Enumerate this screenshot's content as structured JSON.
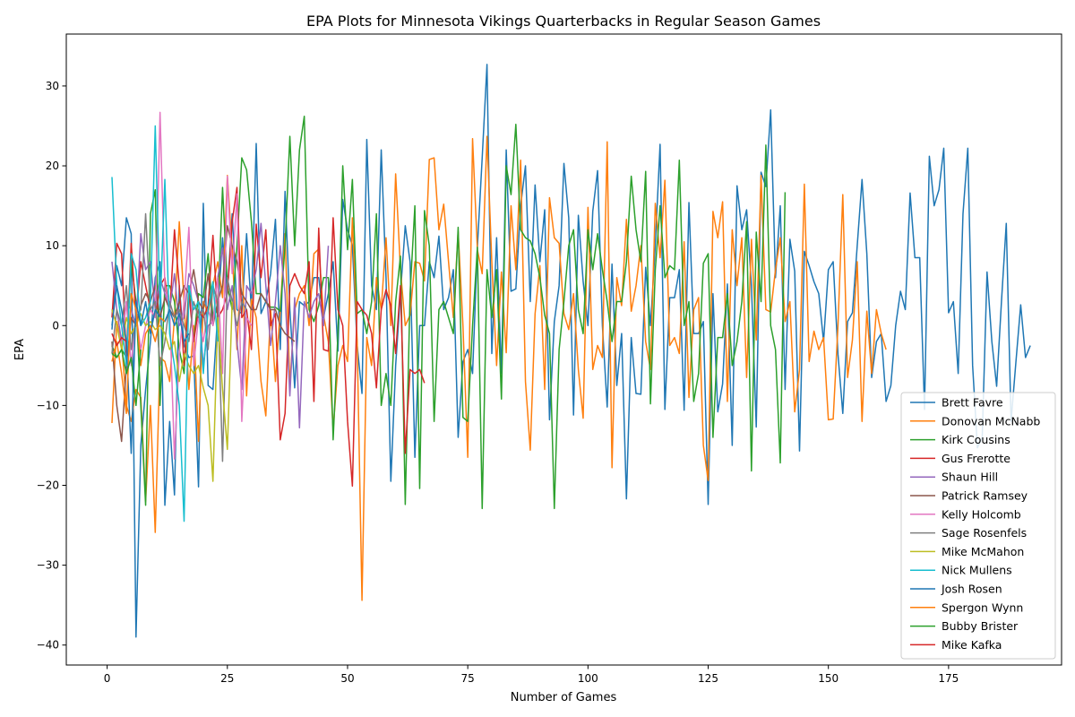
{
  "chart_data": {
    "type": "line",
    "title": "EPA Plots for Minnesota Vikings Quarterbacks in Regular Season Games",
    "xlabel": "Number of Games",
    "ylabel": "EPA",
    "xlim": [
      -8.5,
      198.5
    ],
    "ylim": [
      -42.5,
      36.5
    ],
    "xticks": [
      0,
      25,
      50,
      75,
      100,
      125,
      150,
      175
    ],
    "yticks": [
      -40,
      -30,
      -20,
      -10,
      0,
      10,
      20,
      30
    ],
    "xtick_labels": [
      "0",
      "25",
      "50",
      "75",
      "100",
      "125",
      "150",
      "175"
    ],
    "ytick_labels": [
      "−40",
      "−30",
      "−20",
      "−10",
      "0",
      "10",
      "20",
      "30"
    ],
    "grid": false,
    "legend_position": "lower-right",
    "series": [
      {
        "name": "Brett Favre",
        "color": "#1f77b4",
        "x_start": 1,
        "values": [
          -0.5,
          7.5,
          5.0,
          13.5,
          11.5,
          -39.0,
          -15.0,
          -8.0,
          -2.0,
          6.0,
          8.0,
          -22.5,
          -12.0,
          -21.2,
          5.0,
          -2.5,
          -4.0,
          -3.8,
          -20.2,
          15.3,
          -7.5,
          -8.0,
          1.6,
          11.0,
          4.0,
          14.0,
          2.0,
          1.5,
          11.5,
          2.0,
          22.8,
          1.5,
          3.0,
          6.5,
          13.3,
          -3.0,
          16.8,
          2.0,
          -7.8,
          3.0,
          2.5,
          3.0,
          6.0,
          6.0,
          1.0,
          4.0,
          8.0,
          -3.2,
          15.8,
          12.0,
          10.0,
          -2.5,
          -8.5,
          23.3,
          5.0,
          2.0,
          22.0,
          6.0,
          -19.5,
          -5.0,
          4.0,
          12.5,
          8.0,
          -16.5,
          0.0,
          0.0,
          8.0,
          6.0,
          11.2,
          2.0,
          3.5,
          7.0,
          -14.0,
          -4.5,
          -3.0,
          -6.0,
          9.8,
          21.0,
          32.7,
          -3.5,
          11.0,
          -6.0,
          22.0,
          4.3,
          4.6,
          15.0,
          20.0,
          3.0,
          17.6,
          8.0,
          14.5,
          -11.8,
          0.5,
          5.0,
          20.3,
          13.5,
          -11.2,
          13.8,
          5.5,
          0.0,
          14.3,
          19.4,
          0.0,
          -10.2,
          7.7,
          -7.5,
          -1.0,
          -21.7,
          -1.5,
          -8.5,
          -8.6,
          7.3,
          0.0,
          10.0,
          22.7,
          -10.5,
          3.5,
          3.5,
          7.0,
          -10.6,
          15.4,
          -1.0,
          -1.0,
          0.5,
          -22.4,
          4.0,
          -10.8,
          -7.3,
          5.2,
          -15.0,
          17.5,
          12.0,
          14.5,
          5.0,
          -12.7,
          19.2,
          17.4,
          27.0,
          6.0,
          15.0,
          -8.0,
          10.8,
          6.8,
          -15.7,
          9.3,
          7.5,
          5.5,
          4.0,
          -2.0,
          7.0,
          8.0,
          -3.6,
          -11.0,
          0.5,
          1.6,
          10.0,
          18.3,
          9.0,
          -6.5,
          -2.0,
          -1.0,
          -9.5,
          -7.5,
          0.0,
          4.3,
          2.0,
          16.6,
          8.5,
          8.5,
          -10.5,
          21.2,
          15.0,
          17.0,
          22.2,
          1.6,
          3.0,
          -6.0,
          14.0,
          22.2,
          -5.0,
          -15.3,
          -14.0,
          6.7,
          -2.0,
          -7.6,
          3.0,
          12.8,
          -12.0,
          -4.6,
          2.6,
          -4.0,
          -2.5
        ]
      },
      {
        "name": "Donovan McNabb",
        "color": "#ff7f0e",
        "x_start": 1,
        "values": [
          -12.2,
          0.5,
          -2.0,
          -10.0,
          -12.0,
          -8.0,
          -9.0,
          -22.0,
          -10.0,
          -25.9,
          -4.0,
          -4.5,
          -7.0,
          1.0,
          13.0,
          3.0,
          -8.0,
          0.0,
          -14.5,
          3.0,
          1.5,
          5.0,
          8.0,
          3.5,
          18.8,
          9.5,
          -3.0,
          10.0,
          -8.8,
          3.3,
          1.0,
          -7.0,
          -11.3,
          2.0,
          -7.0,
          2.0,
          11.5,
          -7.5,
          2.0,
          4.0,
          5.0,
          0.0,
          9.0,
          9.6,
          1.3,
          -2.0,
          -13.0,
          -5.0,
          -2.5,
          -4.5,
          13.5,
          -2.0,
          -34.4,
          -1.5,
          -5.0,
          6.0,
          2.0,
          11.0,
          0.0,
          19.0,
          7.0,
          0.0,
          1.3,
          8.0,
          7.8,
          5.6,
          20.8,
          21.0,
          12.0,
          15.2,
          8.0,
          1.0,
          11.8,
          0.0,
          -16.5,
          23.4,
          9.5,
          6.5,
          23.7,
          8.0,
          -5.0,
          6.7,
          -3.4,
          15.0,
          7.0,
          20.7,
          -7.0,
          -15.6,
          1.5,
          7.5,
          -8.0,
          16.0,
          11.0,
          10.3,
          1.5,
          -0.5,
          4.0,
          -5.5,
          -11.6,
          14.8,
          -5.5,
          -2.5,
          -4.0,
          23.0,
          -17.8,
          6.0,
          2.5,
          13.3,
          1.8,
          5.0,
          10.0,
          -2.0,
          -5.5,
          15.3,
          8.5,
          18.2,
          -2.5,
          -1.5,
          -3.5,
          10.5,
          -9.0,
          2.0,
          3.5,
          -15.0,
          -19.4,
          14.3,
          11.0,
          15.5,
          -9.5,
          12.0,
          5.0,
          11.0,
          -6.5,
          10.8,
          -1.8,
          18.8,
          2.0,
          1.7,
          7.0,
          11.0,
          0.5,
          3.0,
          -10.8,
          -5.5,
          17.7,
          -4.5,
          -0.7,
          -3.0,
          -1.5,
          -11.8,
          -11.7,
          0.0,
          16.4,
          -6.5,
          -1.8,
          8.0,
          -12.0,
          1.8,
          -6.0,
          2.0,
          -1.0,
          -3.0
        ]
      },
      {
        "name": "Kirk Cousins",
        "color": "#2ca02c",
        "x_start": 1,
        "values": [
          -2.5,
          -4.0,
          -3.0,
          -4.0,
          8.0,
          3.0,
          -10.0,
          -22.5,
          14.0,
          17.0,
          -10.0,
          5.0,
          5.0,
          3.0,
          -3.0,
          -6.0,
          5.0,
          -2.0,
          4.0,
          3.5,
          9.0,
          1.0,
          2.0,
          17.3,
          5.0,
          2.0,
          10.0,
          21.0,
          19.5,
          13.0,
          4.0,
          4.0,
          3.0,
          2.3,
          2.3,
          1.8,
          10.0,
          23.7,
          10.0,
          22.0,
          26.2,
          2.0,
          0.5,
          2.5,
          6.0,
          6.0,
          -14.3,
          -1.0,
          20.0,
          9.5,
          18.3,
          1.5,
          2.0,
          -1.0,
          3.0,
          14.0,
          -10.0,
          -6.0,
          -10.0,
          3.0,
          8.7,
          -22.4,
          4.0,
          15.0,
          -20.4,
          14.4,
          10.0,
          -12.0,
          2.0,
          3.0,
          1.0,
          -1.0,
          12.3,
          -11.5,
          -12.0,
          0.0,
          9.8,
          -22.9,
          7.0,
          1.0,
          7.0,
          -9.2,
          20.0,
          16.4,
          25.2,
          12.0,
          11.0,
          10.6,
          9.0,
          6.0,
          1.3,
          -1.0,
          -22.9,
          -3.0,
          3.0,
          10.0,
          12.0,
          2.0,
          -1.0,
          12.0,
          7.0,
          11.5,
          7.0,
          3.0,
          -2.0,
          3.0,
          3.0,
          8.0,
          18.7,
          12.0,
          8.0,
          19.3,
          -9.8,
          7.0,
          15.0,
          6.0,
          7.5,
          7.0,
          20.7,
          0.0,
          3.0,
          -9.5,
          -6.0,
          7.8,
          9.0,
          -14.0,
          -1.5,
          -1.5,
          4.0,
          -5.0,
          -2.0,
          3.0,
          13.0,
          -18.2,
          11.7,
          3.0,
          22.6,
          0.0,
          -3.0,
          -17.2,
          16.7
        ]
      },
      {
        "name": "Gus Frerotte",
        "color": "#d62728",
        "x_start": 1,
        "values": [
          1.0,
          10.3,
          9.0,
          -4.0,
          10.3,
          1.0,
          8.0,
          5.0,
          2.0,
          1.0,
          5.0,
          6.0,
          1.3,
          12.0,
          5.0,
          -5.0,
          4.0,
          -2.0,
          2.0,
          1.0,
          2.5,
          11.3,
          1.0,
          2.0,
          4.0,
          13.0,
          17.3,
          1.0,
          2.0,
          -3.0,
          12.7,
          6.0,
          12.0,
          0.0,
          1.5,
          -14.3,
          -11.0,
          5.0,
          6.5,
          5.0,
          4.0,
          8.0,
          -9.5,
          12.2,
          -3.0,
          -3.2,
          13.5,
          2.0,
          0.0,
          -12.0,
          -20.1,
          3.0,
          2.0,
          1.3,
          -1.0,
          -7.8,
          2.0,
          4.5,
          2.5,
          -3.5,
          5.0,
          -16.0,
          -5.5,
          -6.0,
          -5.5,
          -7.2
        ]
      },
      {
        "name": "Shaun Hill",
        "color": "#9467bd",
        "x_start": 1,
        "values": [
          8.0,
          2.0,
          -2.0,
          3.0,
          2.0,
          0.0,
          11.5,
          7.0,
          8.0,
          2.0,
          6.0,
          4.0,
          2.0,
          6.5,
          0.0,
          1.0,
          6.5,
          5.0,
          3.0,
          -5.0,
          0.0,
          0.5,
          6.0,
          9.7,
          2.0,
          5.0,
          -2.0,
          -8.0,
          5.0,
          4.0,
          7.0,
          12.8,
          5.0,
          -2.5,
          3.0,
          10.0,
          4.0,
          -8.8,
          3.5,
          -12.8,
          3.0,
          1.0,
          3.0,
          4.0,
          0.0,
          10.0
        ]
      },
      {
        "name": "Patrick Ramsey",
        "color": "#8c564b",
        "x_start": 1,
        "values": [
          -2.0,
          -10.0,
          -14.5,
          -5.0,
          1.0,
          0.0,
          2.5,
          4.0,
          3.0,
          5.0,
          1.0,
          3.5,
          2.0,
          1.0,
          3.0,
          5.0,
          4.0,
          7.0,
          3.0,
          2.0,
          6.5,
          0.0,
          3.0,
          5.0,
          12.5,
          10.0,
          8.0,
          4.0,
          3.0,
          2.0,
          2.0,
          4.0,
          3.0,
          2.0,
          2.0,
          0.0,
          -1.0,
          -1.5,
          -2.0
        ]
      },
      {
        "name": "Kelly Holcomb",
        "color": "#e377c2",
        "x_start": 1,
        "values": [
          2.0,
          0.0,
          -2.5,
          3.0,
          -5.0,
          1.5,
          -3.0,
          0.0,
          2.0,
          1.0,
          26.7,
          5.0,
          2.0,
          -16.7,
          -3.5,
          3.0,
          12.3,
          -5.0,
          1.0,
          -2.0,
          2.0,
          0.0,
          6.0,
          -6.0,
          18.7,
          6.5,
          16.5,
          -12.0,
          1.0,
          0.0
        ]
      },
      {
        "name": "Sage Rosenfels",
        "color": "#7f7f7f",
        "x_start": 1,
        "values": [
          -3.5,
          2.0,
          0.0,
          5.0,
          -3.0,
          1.0,
          2.0,
          14.0,
          2.0,
          3.0,
          -5.0,
          -2.0,
          3.0,
          1.0,
          2.0,
          0.0,
          -2.0,
          3.0,
          1.0,
          2.0,
          -3.0,
          5.0,
          3.0,
          -17.0,
          6.0,
          3.0,
          0.0,
          3.0,
          2.0
        ]
      },
      {
        "name": "Mike McMahon",
        "color": "#bcbd22",
        "x_start": 1,
        "values": [
          2.0,
          0.0,
          -3.0,
          1.0,
          -1.0,
          0.0,
          1.5,
          0.0,
          0.5,
          -0.5,
          0.0,
          -1.0,
          -3.0,
          -2.0,
          -7.0,
          -3.5,
          -5.0,
          -6.0,
          -5.0,
          -7.8,
          -10.0,
          -19.5,
          1.0,
          -8.0,
          -15.5,
          3.0
        ]
      },
      {
        "name": "Nick Mullens",
        "color": "#17becf",
        "x_start": 1,
        "values": [
          18.6,
          5.0,
          0.0,
          -5.0,
          9.0,
          7.0,
          0.0,
          1.0,
          3.0,
          25.0,
          2.0,
          18.3,
          -1.0,
          -5.0,
          -10.0,
          -24.5,
          5.0,
          2.0,
          3.0,
          -6.0,
          2.0,
          5.5,
          -2.0
        ]
      },
      {
        "name": "Josh Rosen",
        "color": "#1f77b4",
        "x_start": 1,
        "values": [
          0.0,
          5.0,
          2.0,
          -2.0,
          -16.0,
          3.0,
          0.0,
          3.0,
          -1.0,
          2.0,
          1.0,
          0.5,
          2.0,
          0.0,
          1.5,
          -2.0,
          -1.0
        ]
      },
      {
        "name": "Spergon Wynn",
        "color": "#ff7f0e",
        "x_start": 1,
        "values": [
          -4.5,
          -2.0,
          -6.0,
          -11.0,
          4.0,
          2.0,
          -5.0,
          -1.0,
          0.0,
          -2.0,
          1.0,
          0.5
        ]
      },
      {
        "name": "Bubby Brister",
        "color": "#2ca02c",
        "x_start": 1,
        "values": [
          -3.5,
          -4.0,
          -3.0,
          -6.0,
          -4.0,
          -10.0,
          -3.0
        ]
      },
      {
        "name": "Mike Kafka",
        "color": "#d62728",
        "x_start": 1,
        "values": [
          -1.0,
          -2.5,
          -1.5,
          -2.0
        ]
      }
    ]
  }
}
